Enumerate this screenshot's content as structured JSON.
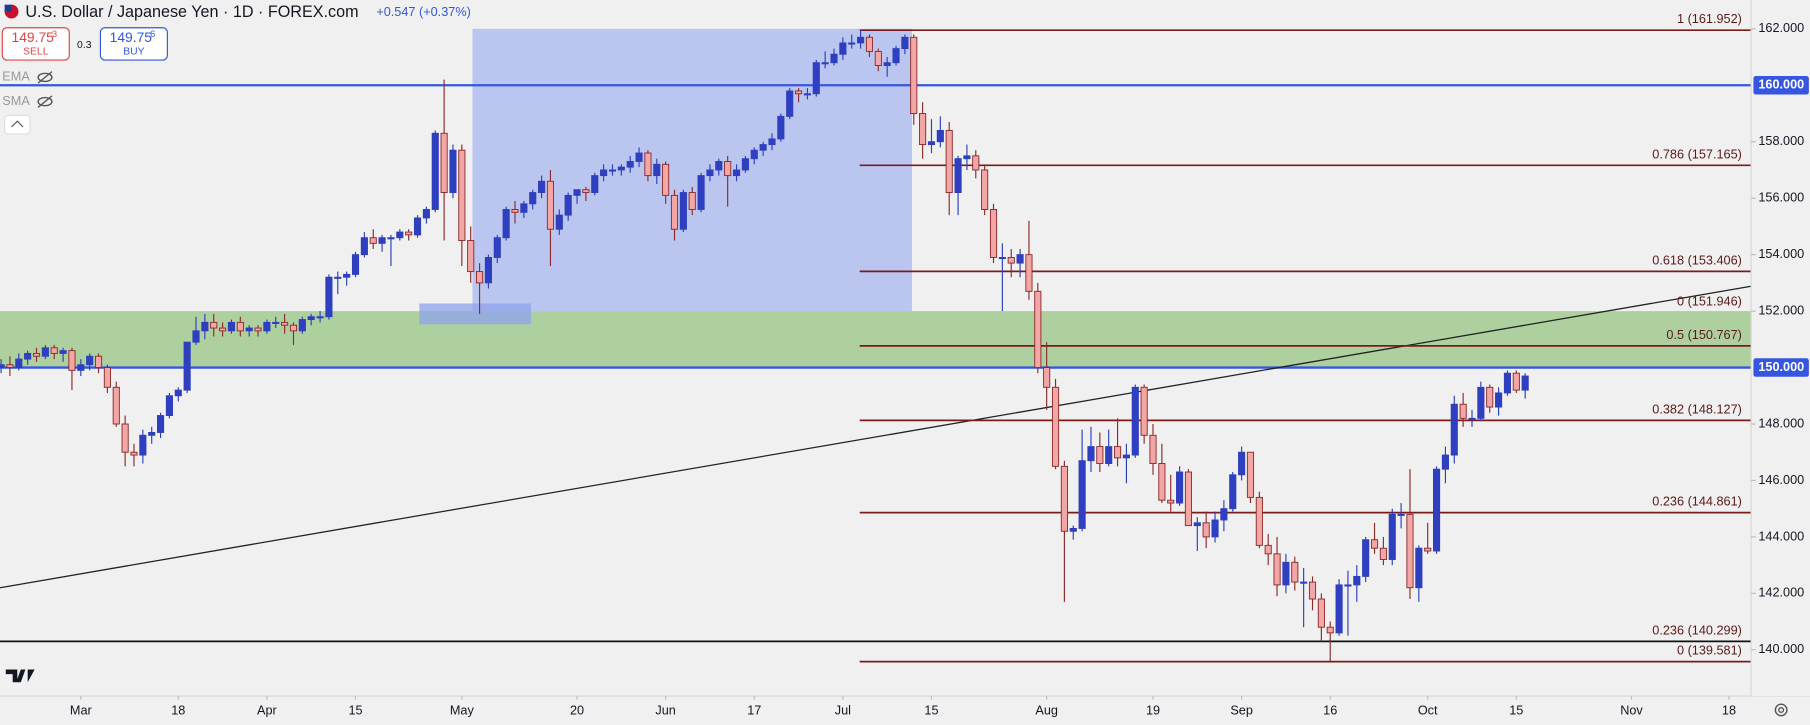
{
  "header": {
    "title": "U.S. Dollar / Japanese Yen · 1D · FOREX.com",
    "change": "+0.547 (+0.37%)",
    "sell_price": "149.75",
    "sell_sup": "3",
    "sell_label": "SELL",
    "spread": "0.3",
    "buy_price": "149.75",
    "buy_sup": "6",
    "buy_label": "BUY",
    "indicators": [
      "EMA",
      "SMA"
    ]
  },
  "chart_data": {
    "type": "candlestick",
    "up_color": "#2e3fbf",
    "down_color": "#f2a6a6",
    "down_edge": "#8b2b2b",
    "xlim": [
      -0.12,
      197.5
    ],
    "ylim": [
      138.36,
      163.02
    ],
    "xticks": [
      {
        "value": 9,
        "label": "Mar"
      },
      {
        "value": 20,
        "label": "18"
      },
      {
        "value": 30,
        "label": "Apr"
      },
      {
        "value": 40,
        "label": "15"
      },
      {
        "value": 52,
        "label": "May"
      },
      {
        "value": 65,
        "label": "20"
      },
      {
        "value": 75,
        "label": "Jun"
      },
      {
        "value": 85,
        "label": "17"
      },
      {
        "value": 95,
        "label": "Jul"
      },
      {
        "value": 105,
        "label": "15"
      },
      {
        "value": 118,
        "label": "Aug"
      },
      {
        "value": 130,
        "label": "19"
      },
      {
        "value": 140,
        "label": "Sep"
      },
      {
        "value": 150,
        "label": "16"
      },
      {
        "value": 161,
        "label": "Oct"
      },
      {
        "value": 171,
        "label": "15"
      },
      {
        "value": 184,
        "label": "Nov"
      },
      {
        "value": 195,
        "label": "18"
      }
    ],
    "yticks": [
      {
        "value": 162,
        "label": "162.000"
      },
      {
        "value": 158,
        "label": "158.000"
      },
      {
        "value": 156,
        "label": "156.000"
      },
      {
        "value": 154,
        "label": "154.000"
      },
      {
        "value": 152,
        "label": "152.000"
      },
      {
        "value": 148,
        "label": "148.000"
      },
      {
        "value": 146,
        "label": "146.000"
      },
      {
        "value": 144,
        "label": "144.000"
      },
      {
        "value": 142,
        "label": "142.000"
      },
      {
        "value": 140,
        "label": "140.000"
      }
    ],
    "hlines": [
      {
        "value": 160,
        "label": "160.000",
        "color": "#3456e0"
      },
      {
        "value": 150,
        "label": "150.000",
        "color": "#3456e0"
      }
    ],
    "zones": [
      {
        "from": 150,
        "to": 152,
        "color": "#aed09f"
      }
    ],
    "boxes": [
      {
        "x": [
          53.2,
          102.8
        ],
        "y": [
          152,
          162
        ],
        "color": "#aab8f0"
      },
      {
        "x": [
          47.2,
          59.8
        ],
        "y": [
          151.53,
          152.27
        ],
        "color": "#8fa3ec"
      }
    ],
    "trendline": {
      "x": [
        -0.12,
        197.5
      ],
      "y": [
        142.2,
        152.88
      ],
      "color": "#222222"
    },
    "fib_start": 96.9,
    "fib_levels": [
      {
        "label": "1 (161.952)",
        "value": 161.952,
        "color": "#7a1c1c"
      },
      {
        "label": "0.786 (157.165)",
        "value": 157.165,
        "color": "#7a1c1c"
      },
      {
        "label": "0.618 (153.406)",
        "value": 153.406,
        "color": "#7a1c1c"
      },
      {
        "label": "0 (151.946)",
        "value": 151.946,
        "color": null
      },
      {
        "label": "0.5 (150.767)",
        "value": 150.767,
        "color": "#7a1c1c"
      },
      {
        "label": "0.382 (148.127)",
        "value": 148.127,
        "color": "#7a1c1c"
      },
      {
        "label": "0.236 (144.861)",
        "value": 144.861,
        "color": "#7a1c1c"
      },
      {
        "label": "0.236 (140.299)",
        "value": 140.299,
        "color": "#111111",
        "full": true
      },
      {
        "label": "0 (139.581)",
        "value": 139.581,
        "color": "#7a1c1c"
      }
    ],
    "ohlc": [
      [
        150.0,
        150.3,
        149.8,
        150.1
      ],
      [
        150.1,
        150.4,
        149.7,
        150.0
      ],
      [
        150.0,
        150.5,
        149.9,
        150.3
      ],
      [
        150.3,
        150.6,
        150.1,
        150.5
      ],
      [
        150.5,
        150.7,
        150.2,
        150.4
      ],
      [
        150.4,
        150.8,
        150.3,
        150.7
      ],
      [
        150.7,
        150.8,
        150.3,
        150.5
      ],
      [
        150.5,
        150.7,
        150.2,
        150.6
      ],
      [
        150.6,
        150.7,
        149.2,
        149.9
      ],
      [
        149.9,
        150.3,
        149.7,
        150.1
      ],
      [
        150.1,
        150.5,
        149.9,
        150.4
      ],
      [
        150.4,
        150.5,
        149.8,
        150.0
      ],
      [
        150.0,
        150.1,
        149.1,
        149.3
      ],
      [
        149.3,
        149.5,
        147.9,
        148.0
      ],
      [
        148.0,
        148.3,
        146.5,
        147.0
      ],
      [
        147.0,
        147.3,
        146.5,
        146.9
      ],
      [
        146.9,
        147.8,
        146.6,
        147.6
      ],
      [
        147.6,
        147.9,
        147.3,
        147.7
      ],
      [
        147.7,
        148.4,
        147.5,
        148.3
      ],
      [
        148.3,
        149.1,
        148.2,
        149.0
      ],
      [
        149.0,
        149.3,
        148.8,
        149.2
      ],
      [
        149.2,
        150.9,
        149.1,
        150.9
      ],
      [
        150.9,
        151.8,
        150.8,
        151.3
      ],
      [
        151.3,
        151.9,
        151.0,
        151.6
      ],
      [
        151.6,
        151.9,
        151.1,
        151.4
      ],
      [
        151.4,
        151.6,
        151.1,
        151.3
      ],
      [
        151.3,
        151.7,
        151.2,
        151.6
      ],
      [
        151.6,
        151.8,
        151.1,
        151.3
      ],
      [
        151.3,
        151.5,
        151.1,
        151.4
      ],
      [
        151.4,
        151.5,
        151.1,
        151.3
      ],
      [
        151.3,
        151.7,
        151.2,
        151.6
      ],
      [
        151.6,
        151.8,
        151.4,
        151.6
      ],
      [
        151.6,
        151.9,
        151.2,
        151.5
      ],
      [
        151.5,
        151.6,
        150.8,
        151.3
      ],
      [
        151.3,
        151.8,
        151.2,
        151.7
      ],
      [
        151.7,
        151.9,
        151.5,
        151.8
      ],
      [
        151.8,
        152.0,
        151.6,
        151.8
      ],
      [
        151.8,
        153.3,
        151.7,
        153.2
      ],
      [
        153.2,
        153.4,
        152.6,
        153.2
      ],
      [
        153.2,
        153.4,
        152.9,
        153.3
      ],
      [
        153.3,
        154.1,
        153.2,
        154.0
      ],
      [
        154.0,
        154.8,
        153.9,
        154.6
      ],
      [
        154.6,
        154.9,
        154.2,
        154.4
      ],
      [
        154.4,
        154.7,
        154.1,
        154.6
      ],
      [
        154.6,
        154.7,
        153.6,
        154.6
      ],
      [
        154.6,
        154.9,
        154.5,
        154.8
      ],
      [
        154.8,
        154.9,
        154.5,
        154.7
      ],
      [
        154.7,
        155.4,
        154.6,
        155.3
      ],
      [
        155.3,
        155.7,
        155.1,
        155.6
      ],
      [
        155.6,
        158.4,
        155.5,
        158.3
      ],
      [
        158.3,
        160.2,
        154.5,
        156.2
      ],
      [
        156.2,
        157.9,
        156.0,
        157.7
      ],
      [
        157.7,
        157.9,
        153.6,
        154.5
      ],
      [
        154.5,
        155.0,
        153.0,
        153.4
      ],
      [
        153.4,
        153.7,
        151.9,
        153.0
      ],
      [
        153.0,
        154.0,
        152.8,
        153.9
      ],
      [
        153.9,
        154.7,
        153.7,
        154.6
      ],
      [
        154.6,
        155.7,
        154.5,
        155.6
      ],
      [
        155.6,
        155.9,
        155.1,
        155.5
      ],
      [
        155.5,
        155.9,
        155.3,
        155.8
      ],
      [
        155.8,
        156.3,
        155.6,
        156.2
      ],
      [
        156.2,
        156.8,
        156.0,
        156.6
      ],
      [
        156.6,
        157.0,
        153.6,
        154.9
      ],
      [
        154.9,
        155.6,
        154.7,
        155.4
      ],
      [
        155.4,
        156.2,
        155.2,
        156.1
      ],
      [
        156.1,
        156.3,
        155.8,
        156.3
      ],
      [
        156.3,
        156.4,
        155.9,
        156.2
      ],
      [
        156.2,
        156.9,
        156.1,
        156.8
      ],
      [
        156.8,
        157.2,
        156.6,
        157.0
      ],
      [
        157.0,
        157.2,
        156.8,
        157.0
      ],
      [
        157.0,
        157.2,
        156.8,
        157.1
      ],
      [
        157.1,
        157.5,
        156.9,
        157.3
      ],
      [
        157.3,
        157.8,
        157.1,
        157.6
      ],
      [
        157.6,
        157.7,
        156.6,
        156.8
      ],
      [
        156.8,
        157.4,
        156.5,
        157.2
      ],
      [
        157.2,
        157.3,
        155.8,
        156.1
      ],
      [
        156.1,
        156.3,
        154.5,
        154.9
      ],
      [
        154.9,
        156.3,
        154.8,
        156.2
      ],
      [
        156.2,
        156.4,
        155.4,
        155.6
      ],
      [
        155.6,
        156.9,
        155.5,
        156.8
      ],
      [
        156.8,
        157.2,
        156.6,
        157.0
      ],
      [
        157.0,
        157.4,
        156.8,
        157.3
      ],
      [
        157.3,
        157.5,
        155.7,
        156.8
      ],
      [
        156.8,
        157.2,
        156.6,
        157.0
      ],
      [
        157.0,
        157.5,
        156.9,
        157.4
      ],
      [
        157.4,
        157.8,
        157.2,
        157.7
      ],
      [
        157.7,
        158.0,
        157.5,
        157.9
      ],
      [
        157.9,
        158.3,
        157.7,
        158.1
      ],
      [
        158.1,
        159.0,
        158.0,
        158.9
      ],
      [
        158.9,
        159.9,
        158.8,
        159.8
      ],
      [
        159.8,
        159.9,
        159.4,
        159.7
      ],
      [
        159.7,
        159.9,
        159.5,
        159.7
      ],
      [
        159.7,
        160.9,
        159.6,
        160.8
      ],
      [
        160.8,
        161.2,
        160.6,
        160.8
      ],
      [
        160.8,
        161.3,
        160.7,
        161.1
      ],
      [
        161.1,
        161.7,
        160.9,
        161.5
      ],
      [
        161.5,
        161.8,
        161.3,
        161.5
      ],
      [
        161.5,
        161.95,
        161.3,
        161.7
      ],
      [
        161.7,
        161.8,
        161.0,
        161.2
      ],
      [
        161.2,
        161.3,
        160.5,
        160.7
      ],
      [
        160.7,
        161.0,
        160.3,
        160.8
      ],
      [
        160.8,
        161.4,
        160.7,
        161.3
      ],
      [
        161.3,
        161.8,
        161.1,
        161.7
      ],
      [
        161.7,
        161.8,
        158.6,
        159.0
      ],
      [
        159.0,
        159.4,
        157.4,
        157.9
      ],
      [
        157.9,
        158.8,
        157.6,
        158.0
      ],
      [
        158.0,
        158.9,
        157.8,
        158.4
      ],
      [
        158.4,
        158.7,
        155.4,
        156.2
      ],
      [
        156.2,
        157.5,
        155.4,
        157.4
      ],
      [
        157.4,
        157.9,
        157.0,
        157.5
      ],
      [
        157.5,
        157.7,
        156.7,
        157.0
      ],
      [
        157.0,
        157.2,
        155.4,
        155.6
      ],
      [
        155.6,
        155.8,
        153.7,
        153.9
      ],
      [
        153.9,
        154.4,
        152.0,
        153.9
      ],
      [
        153.9,
        154.2,
        153.2,
        153.7
      ],
      [
        153.7,
        154.2,
        153.2,
        154.0
      ],
      [
        154.0,
        155.2,
        152.4,
        152.7
      ],
      [
        152.7,
        153.0,
        149.8,
        150.0
      ],
      [
        150.0,
        150.9,
        148.5,
        149.3
      ],
      [
        149.3,
        149.6,
        146.4,
        146.5
      ],
      [
        146.5,
        146.7,
        141.7,
        144.2
      ],
      [
        144.2,
        144.4,
        143.9,
        144.3
      ],
      [
        144.3,
        147.8,
        144.2,
        146.7
      ],
      [
        146.7,
        147.9,
        146.3,
        147.2
      ],
      [
        147.2,
        147.7,
        146.3,
        146.6
      ],
      [
        146.6,
        147.8,
        146.5,
        147.2
      ],
      [
        147.2,
        148.2,
        146.5,
        146.8
      ],
      [
        146.8,
        147.3,
        145.9,
        146.9
      ],
      [
        146.9,
        149.4,
        146.8,
        149.3
      ],
      [
        149.3,
        149.4,
        147.3,
        147.6
      ],
      [
        147.6,
        148.0,
        146.2,
        146.6
      ],
      [
        146.6,
        147.3,
        145.2,
        145.3
      ],
      [
        145.3,
        146.2,
        144.9,
        145.2
      ],
      [
        145.2,
        146.5,
        145.1,
        146.3
      ],
      [
        146.3,
        146.4,
        144.4,
        144.4
      ],
      [
        144.4,
        144.7,
        143.5,
        144.5
      ],
      [
        144.5,
        144.9,
        143.6,
        144.0
      ],
      [
        144.0,
        144.9,
        143.8,
        144.6
      ],
      [
        144.6,
        145.3,
        144.2,
        145.0
      ],
      [
        145.0,
        146.3,
        144.9,
        146.2
      ],
      [
        146.2,
        147.2,
        146.0,
        147.0
      ],
      [
        147.0,
        147.0,
        145.2,
        145.4
      ],
      [
        145.4,
        145.6,
        143.6,
        143.7
      ],
      [
        143.7,
        144.1,
        143.0,
        143.4
      ],
      [
        143.4,
        144.0,
        141.9,
        142.3
      ],
      [
        142.3,
        143.4,
        142.0,
        143.1
      ],
      [
        143.1,
        143.3,
        142.1,
        142.4
      ],
      [
        142.4,
        142.9,
        140.8,
        142.4
      ],
      [
        142.4,
        142.6,
        141.4,
        141.8
      ],
      [
        141.8,
        142.0,
        140.3,
        140.8
      ],
      [
        140.8,
        141.0,
        139.58,
        140.6
      ],
      [
        140.6,
        142.5,
        140.5,
        142.3
      ],
      [
        142.3,
        142.8,
        140.5,
        142.3
      ],
      [
        142.3,
        143.0,
        141.7,
        142.6
      ],
      [
        142.6,
        144.0,
        142.4,
        143.9
      ],
      [
        143.9,
        144.5,
        143.4,
        143.6
      ],
      [
        143.6,
        144.0,
        143.0,
        143.2
      ],
      [
        143.2,
        145.0,
        143.0,
        144.8
      ],
      [
        144.8,
        145.2,
        144.3,
        144.8
      ],
      [
        144.8,
        146.4,
        141.8,
        142.2
      ],
      [
        142.2,
        143.7,
        141.7,
        143.6
      ],
      [
        143.6,
        144.5,
        143.4,
        143.5
      ],
      [
        143.5,
        146.5,
        143.4,
        146.4
      ],
      [
        146.4,
        147.2,
        145.9,
        146.9
      ],
      [
        146.9,
        149.0,
        146.6,
        148.7
      ],
      [
        148.7,
        149.1,
        147.9,
        148.2
      ],
      [
        148.2,
        148.5,
        147.9,
        148.2
      ],
      [
        148.2,
        149.5,
        148.1,
        149.3
      ],
      [
        149.3,
        149.4,
        148.4,
        148.6
      ],
      [
        148.6,
        149.3,
        148.3,
        149.1
      ],
      [
        149.1,
        149.9,
        149.0,
        149.8
      ],
      [
        149.8,
        149.9,
        149.1,
        149.2
      ],
      [
        149.2,
        149.8,
        148.9,
        149.7
      ]
    ]
  }
}
